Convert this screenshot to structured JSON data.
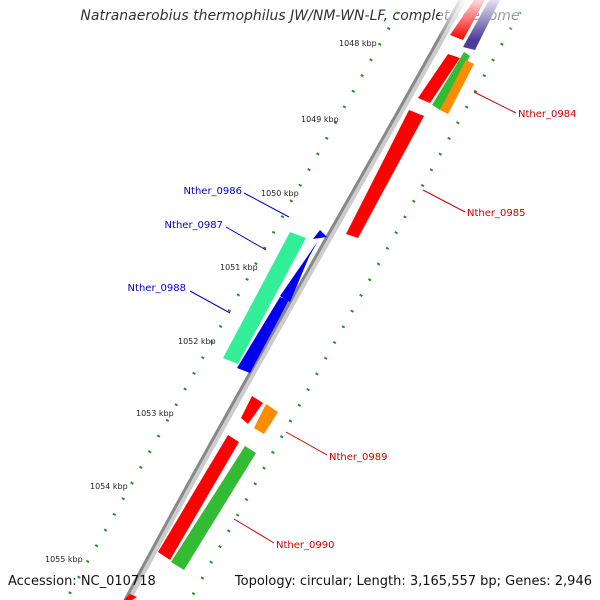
{
  "title": "Natranaerobius thermophilus JW/NM-WN-LF, complete genome",
  "footer": {
    "accession": "Accession: NC_010718",
    "topology": "Topology: circular; Length: 3,165,557 bp; Genes: 2,946"
  },
  "colors": {
    "background": "#ffffff",
    "backbone": "#888888",
    "tick": "#2f8a2f",
    "forward_label": "#0000cc",
    "reverse_label": "#cc0000"
  },
  "ticks": [
    "1048 kbp",
    "1049 kbp",
    "1050 kbp",
    "1051 kbp",
    "1052 kbp",
    "1053 kbp",
    "1054 kbp",
    "1055 kbp"
  ],
  "gene_labels": [
    {
      "name": "Nther_0984",
      "strand": "reverse"
    },
    {
      "name": "Nther_0985",
      "strand": "reverse"
    },
    {
      "name": "Nther_0986",
      "strand": "forward"
    },
    {
      "name": "Nther_0987",
      "strand": "forward"
    },
    {
      "name": "Nther_0988",
      "strand": "forward"
    },
    {
      "name": "Nther_0989",
      "strand": "reverse"
    },
    {
      "name": "Nther_0990",
      "strand": "reverse"
    }
  ],
  "features": [
    {
      "name": "top-red",
      "color": "#ff0000"
    },
    {
      "name": "top-purple",
      "color": "#4b3c9a"
    },
    {
      "name": "Nther_0984-red",
      "color": "#ff0000"
    },
    {
      "name": "Nther_0984-green",
      "color": "#33bb33"
    },
    {
      "name": "Nther_0984-orange",
      "color": "#ff8c00"
    },
    {
      "name": "Nther_0985-red",
      "color": "#ff0000"
    },
    {
      "name": "Nther_0986-blue",
      "color": "#0000ee"
    },
    {
      "name": "Nther_0987-blue",
      "color": "#0000ee"
    },
    {
      "name": "Nther_0988-blue",
      "color": "#0000ee"
    },
    {
      "name": "Nther_0988-teal",
      "color": "#33ee99"
    },
    {
      "name": "Nther_0989-red",
      "color": "#ff0000"
    },
    {
      "name": "Nther_0989-orange",
      "color": "#ff8c00"
    },
    {
      "name": "Nther_0990-red",
      "color": "#ff0000"
    },
    {
      "name": "Nther_0990-green",
      "color": "#33bb33"
    },
    {
      "name": "bottom-red",
      "color": "#ff0000"
    }
  ]
}
